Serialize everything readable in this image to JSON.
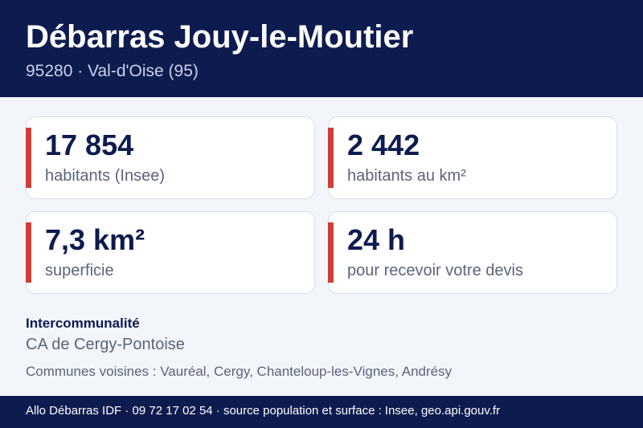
{
  "header": {
    "title": "Débarras Jouy-le-Moutier",
    "subtitle": "95280 · Val-d'Oise (95)"
  },
  "stats": [
    {
      "value": "17 854",
      "label": "habitants (Insee)"
    },
    {
      "value": "2 442",
      "label": "habitants au km²"
    },
    {
      "value": "7,3 km²",
      "label": "superficie"
    },
    {
      "value": "24 h",
      "label": "pour recevoir votre devis"
    }
  ],
  "intercommunalite": {
    "label": "Intercommunalité",
    "value": "CA de Cergy-Pontoise"
  },
  "neighbors": "Communes voisines : Vauréal, Cergy, Chanteloup-les-Vignes, Andrésy",
  "footer": "Allo Débarras IDF · 09 72 17 02 54 · source population et surface : Insee, geo.api.gouv.fr",
  "colors": {
    "navy": "#0d1b4f",
    "accent_red": "#d63b34",
    "background": "#f2f5fa",
    "muted_text": "#5b6479"
  }
}
